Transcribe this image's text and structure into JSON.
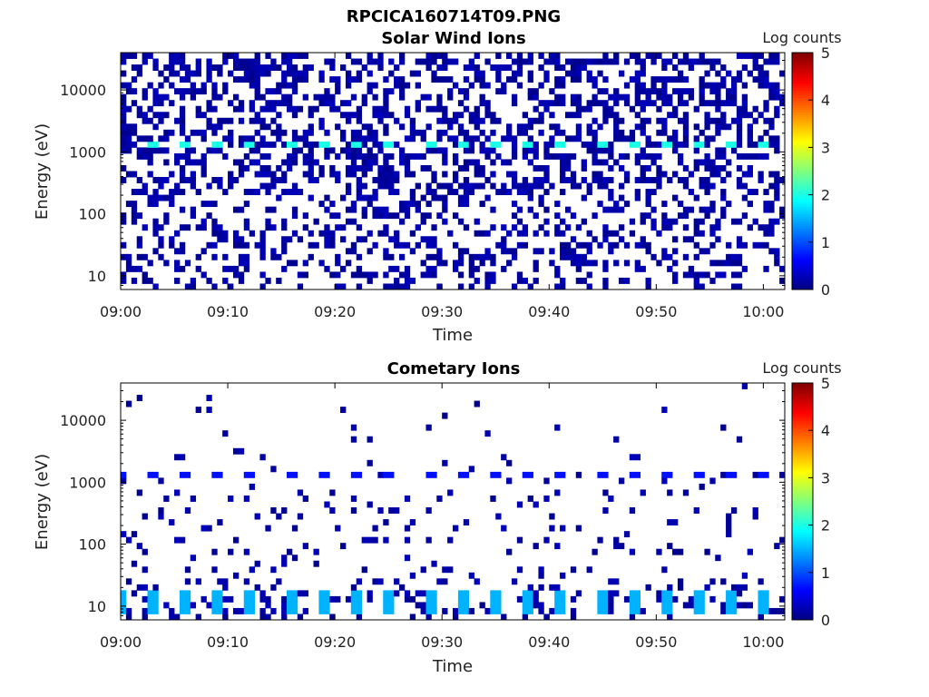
{
  "figure_title": "RPCICA160714T09.PNG",
  "colorbar": {
    "label": "Log counts",
    "range": [
      0,
      5
    ],
    "ticks": [
      "0",
      "1",
      "2",
      "3",
      "4",
      "5"
    ],
    "colormap": "jet"
  },
  "chart_data": [
    {
      "type": "heatmap",
      "title": "Solar Wind Ions",
      "xlabel": "Time",
      "ylabel": "Energy (eV)",
      "x_range": [
        "09:00",
        "10:02"
      ],
      "x_ticks": [
        "09:00",
        "09:10",
        "09:20",
        "09:30",
        "09:40",
        "09:50",
        "10:00"
      ],
      "y_scale": "log",
      "y_range": [
        6,
        40000
      ],
      "y_ticks": [
        "10",
        "100",
        "1000",
        "10000"
      ],
      "colorbar_range": [
        0,
        5
      ],
      "features": [
        {
          "description": "pixels",
          "energy_band": [
            1100,
            1400
          ],
          "times": [
            "09:03",
            "09:06",
            "09:09",
            "09:12",
            "09:16",
            "09:19",
            "09:22",
            "09:25",
            "09:29",
            "09:32",
            "09:35",
            "09:38",
            "09:41",
            "09:45",
            "09:48",
            "09:51",
            "09:54",
            "09:57",
            "10:00"
          ],
          "log_counts": 2.0
        }
      ]
    },
    {
      "type": "heatmap",
      "title": "Cometary Ions",
      "xlabel": "Time",
      "ylabel": "Energy (eV)",
      "x_range": [
        "09:00",
        "10:02"
      ],
      "x_ticks": [
        "09:00",
        "09:10",
        "09:20",
        "09:30",
        "09:40",
        "09:50",
        "10:00"
      ],
      "y_scale": "log",
      "y_range": [
        6,
        40000
      ],
      "y_ticks": [
        "10",
        "100",
        "1000",
        "10000"
      ],
      "colorbar_range": [
        0,
        5
      ],
      "features": [
        {
          "description": "pixels",
          "energy_band": [
            7,
            20
          ],
          "times": [
            "09:00",
            "09:03",
            "09:06",
            "09:09",
            "09:12",
            "09:16",
            "09:19",
            "09:22",
            "09:25",
            "09:29",
            "09:32",
            "09:35",
            "09:38",
            "09:41",
            "09:45",
            "09:48",
            "09:51",
            "09:54",
            "09:57",
            "10:00"
          ],
          "log_counts": 1.5
        },
        {
          "description": "pixels",
          "energy_band": [
            1200,
            1400
          ],
          "times": [
            "09:00",
            "09:03",
            "09:06",
            "09:09",
            "09:12",
            "09:16",
            "09:19",
            "09:22",
            "09:25",
            "09:29",
            "09:32",
            "09:35",
            "09:38",
            "09:41",
            "09:45",
            "09:48",
            "09:51",
            "09:54",
            "09:57",
            "10:00"
          ],
          "log_counts": 0.7
        }
      ]
    }
  ]
}
